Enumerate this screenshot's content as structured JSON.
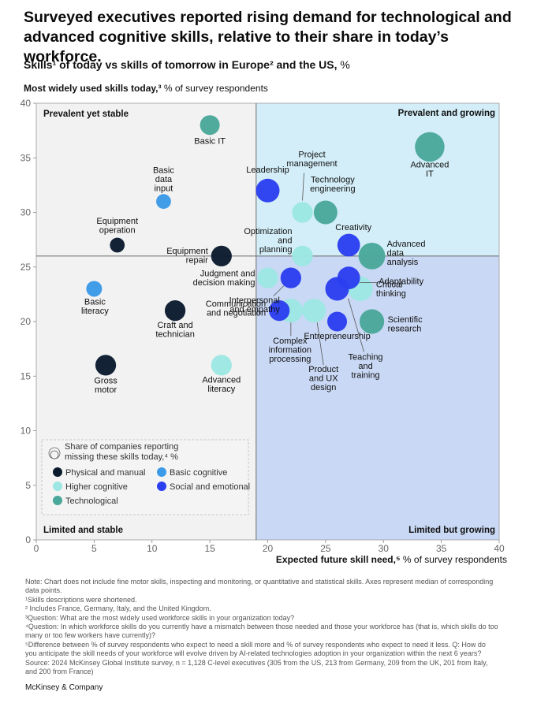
{
  "title": "Surveyed executives reported rising demand for technological and advanced cognitive skills, relative to their share in today’s workforce.",
  "subtitle": {
    "bold": "Skills¹ of today vs skills of tomorrow in Europe² and the US,",
    "unit": " %"
  },
  "y_axis_title": {
    "bold": "Most widely used skills today,³",
    "rest": " % of survey respondents"
  },
  "x_axis_title": {
    "bold": "Expected future skill need,⁵",
    "rest": " % of survey respondents"
  },
  "quadrants": {
    "top_left": "Prevalent yet stable",
    "top_right": "Prevalent and growing",
    "bottom_left": "Limited and stable",
    "bottom_right": "Limited but growing"
  },
  "legend": {
    "title": "Share of companies reporting missing these skills today,⁴ %",
    "items": [
      {
        "label": "Physical and manual",
        "key": "physical"
      },
      {
        "label": "Basic cognitive",
        "key": "basic"
      },
      {
        "label": "Higher cognitive",
        "key": "higher"
      },
      {
        "label": "Social and emotional",
        "key": "social"
      },
      {
        "label": "Technological",
        "key": "tech"
      }
    ]
  },
  "colors": {
    "physical": "#0b1b2e",
    "basic": "#3c9ae8",
    "higher": "#9ce7e3",
    "social": "#2b3ff0",
    "tech": "#4aa89a",
    "quadrant_top_right": "#d3eef8",
    "quadrant_bottom_right": "#c9d8f4",
    "quadrant_left": "#f2f2f2"
  },
  "chart_data": {
    "type": "scatter",
    "xlim": [
      0,
      40
    ],
    "ylim": [
      0,
      40
    ],
    "x_ticks": [
      0,
      5,
      10,
      15,
      20,
      25,
      30,
      35,
      40
    ],
    "y_ticks": [
      0,
      5,
      10,
      15,
      20,
      25,
      30,
      35,
      40
    ],
    "x_divider": 19,
    "y_divider": 26,
    "points": [
      {
        "name": "Basic IT",
        "category": "tech",
        "x": 15,
        "y": 38,
        "size": 1.0
      },
      {
        "name": "Advanced IT",
        "category": "tech",
        "x": 34,
        "y": 36,
        "size": 1.5
      },
      {
        "name": "Technology engineering",
        "category": "tech",
        "x": 25,
        "y": 30,
        "size": 1.2
      },
      {
        "name": "Advanced data analysis",
        "category": "tech",
        "x": 29,
        "y": 26,
        "size": 1.35
      },
      {
        "name": "Scientific research",
        "category": "tech",
        "x": 29,
        "y": 20,
        "size": 1.25
      },
      {
        "name": "Basic data input",
        "category": "basic",
        "x": 11,
        "y": 31,
        "size": 0.75
      },
      {
        "name": "Basic literacy",
        "category": "basic",
        "x": 5,
        "y": 23,
        "size": 0.8
      },
      {
        "name": "Equipment operation",
        "category": "physical",
        "x": 7,
        "y": 27,
        "size": 0.75
      },
      {
        "name": "Equipment repair",
        "category": "physical",
        "x": 16,
        "y": 26,
        "size": 1.05
      },
      {
        "name": "Craft and technician",
        "category": "physical",
        "x": 12,
        "y": 21,
        "size": 1.05
      },
      {
        "name": "Gross motor",
        "category": "physical",
        "x": 6,
        "y": 16,
        "size": 1.05
      },
      {
        "name": "Project management",
        "category": "higher",
        "x": 23,
        "y": 30,
        "size": 1.05
      },
      {
        "name": "Optimization and planning",
        "category": "higher",
        "x": 23,
        "y": 26,
        "size": 1.05
      },
      {
        "name": "Judgment and decision making",
        "category": "higher",
        "x": 20,
        "y": 24,
        "size": 1.05
      },
      {
        "name": "Complex information processing",
        "category": "higher",
        "x": 22,
        "y": 21,
        "size": 1.2
      },
      {
        "name": "Product and UX design",
        "category": "higher",
        "x": 24,
        "y": 21,
        "size": 1.2
      },
      {
        "name": "Critical thinking",
        "category": "higher",
        "x": 28,
        "y": 23,
        "size": 1.25
      },
      {
        "name": "Advanced literacy",
        "category": "higher",
        "x": 16,
        "y": 16,
        "size": 1.05
      },
      {
        "name": "Leadership",
        "category": "social",
        "x": 20,
        "y": 32,
        "size": 1.2
      },
      {
        "name": "Creativity",
        "category": "social",
        "x": 27,
        "y": 27,
        "size": 1.15
      },
      {
        "name": "Adaptability",
        "category": "social",
        "x": 27,
        "y": 24,
        "size": 1.15
      },
      {
        "name": "Communication and negotiation",
        "category": "social",
        "x": 21,
        "y": 21,
        "size": 1.05
      },
      {
        "name": "Interpersonal and empathy",
        "category": "social",
        "x": 22,
        "y": 24,
        "size": 1.05
      },
      {
        "name": "Entrepreneurship",
        "category": "social",
        "x": 26,
        "y": 20,
        "size": 1.0
      },
      {
        "name": "Teaching and training",
        "category": "social",
        "x": 26,
        "y": 23,
        "size": 1.2
      }
    ]
  },
  "notes": [
    "Note: Chart does not include fine motor skills, inspecting and monitoring, or quantitative and statistical skills. Axes represent median of corresponding data points.",
    "¹Skills descriptions were shortened.",
    "² Includes France, Germany, Italy, and the United Kingdom.",
    "³Question: What are the most widely used workforce skills in your organization today?",
    "⁴Question: In which workforce skills do you currently have a mismatch between those needed and those your workforce has (that is, which skills do too many or too few workers have currently)?",
    "⁵Difference between % of survey respondents who expect to need a skill more and % of survey respondents who expect to need it less. Q: How do you anticipate the skill needs of your workforce will evolve driven by AI-related technologies adoption in your organization within the next 6 years?",
    "Source: 2024 McKinsey Global Institute survey, n = 1,128 C-level executives (305 from the US, 213 from Germany, 209 from the UK, 201 from Italy, and 200 from France)"
  ],
  "brand": "McKinsey & Company"
}
